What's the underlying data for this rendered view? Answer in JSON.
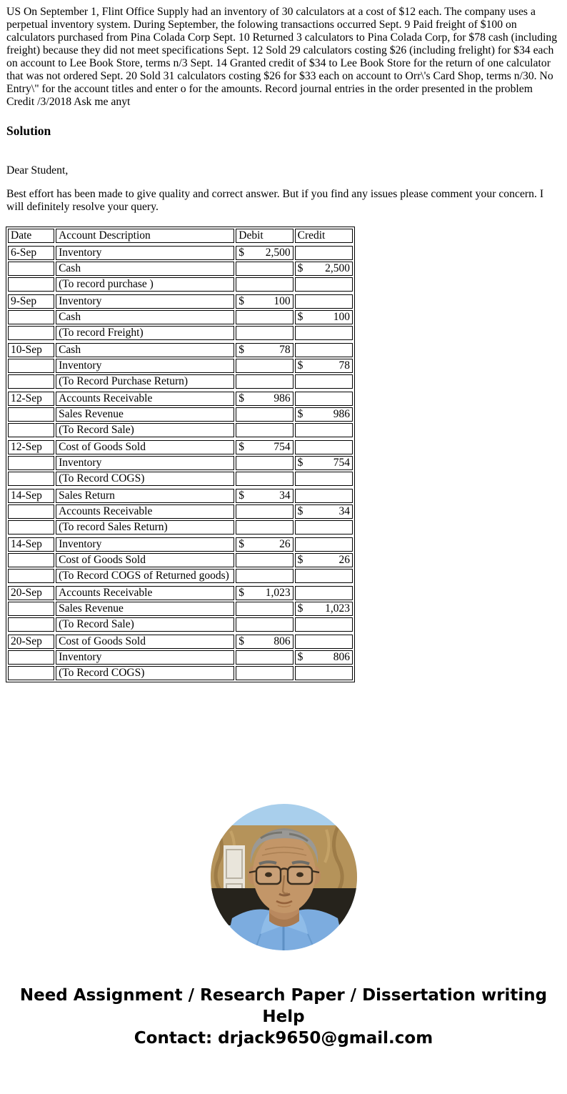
{
  "problem_text": "US On September 1, Flint Office Supply had an inventory of 30 calculators at a cost of $12 each. The company uses a perpetual inventory system. During September, the folowing transactions occurred Sept. 9 Paid freight of $100 on calculators purchased from Pina Colada Corp Sept. 10 Returned 3 calculators to Pina Colada Corp, for $78 cash (including freight) because they did not meet specifications Sept. 12 Sold 29 calculators costing $26 (including frelight) for $34 each on account to Lee Book Store, terms n/3 Sept. 14 Granted credit of $34 to Lee Book Store for the return of one calculator that was not ordered Sept. 20 Sold 31 calculators costing $26 for $33 each on account to Orr\\'s Card Shop, terms n/30. No Entry\\\" for the account titles and enter o for the amounts. Record journal entries in the order presented in the problem Credit /3/2018 Ask me anyt",
  "solution_heading": "Solution",
  "greeting": "Dear Student,",
  "message": "Best effort has been made to give quality and correct answer. But if you find any issues please comment your concern. I will definitely resolve your query.",
  "table": {
    "currency": "$",
    "headers": [
      "Date",
      "Account Description",
      "Debit",
      "Credit"
    ],
    "entries": [
      {
        "rows": [
          {
            "date": "6-Sep",
            "account": "Inventory",
            "debit": "2,500",
            "credit": ""
          },
          {
            "date": "",
            "account": "Cash",
            "debit": "",
            "credit": "2,500"
          },
          {
            "date": "",
            "account": "(To record purchase )",
            "debit": "",
            "credit": ""
          }
        ]
      },
      {
        "rows": [
          {
            "date": "9-Sep",
            "account": "Inventory",
            "debit": "100",
            "credit": ""
          },
          {
            "date": "",
            "account": "Cash",
            "debit": "",
            "credit": "100"
          },
          {
            "date": "",
            "account": "(To record Freight)",
            "debit": "",
            "credit": ""
          }
        ]
      },
      {
        "rows": [
          {
            "date": "10-Sep",
            "account": "Cash",
            "debit": "78",
            "credit": ""
          },
          {
            "date": "",
            "account": "Inventory",
            "debit": "",
            "credit": "78"
          },
          {
            "date": "",
            "account": "(To Record Purchase Return)",
            "debit": "",
            "credit": ""
          }
        ]
      },
      {
        "rows": [
          {
            "date": "12-Sep",
            "account": "Accounts Receivable",
            "debit": "986",
            "credit": ""
          },
          {
            "date": "",
            "account": "Sales Revenue",
            "debit": "",
            "credit": "986"
          },
          {
            "date": "",
            "account": "(To Record Sale)",
            "debit": "",
            "credit": ""
          }
        ]
      },
      {
        "rows": [
          {
            "date": "12-Sep",
            "account": "Cost of Goods Sold",
            "debit": "754",
            "credit": ""
          },
          {
            "date": "",
            "account": "Inventory",
            "debit": "",
            "credit": "754"
          },
          {
            "date": "",
            "account": "(To Record COGS)",
            "debit": "",
            "credit": ""
          }
        ]
      },
      {
        "rows": [
          {
            "date": "14-Sep",
            "account": "Sales Return",
            "debit": "34",
            "credit": ""
          },
          {
            "date": "",
            "account": "Accounts Receivable",
            "debit": "",
            "credit": "34"
          },
          {
            "date": "",
            "account": "(To record Sales Return)",
            "debit": "",
            "credit": ""
          }
        ]
      },
      {
        "rows": [
          {
            "date": "14-Sep",
            "account": "Inventory",
            "debit": "26",
            "credit": ""
          },
          {
            "date": "",
            "account": "Cost of Goods Sold",
            "debit": "",
            "credit": "26"
          },
          {
            "date": "",
            "account": "(To Record COGS of Returned goods)",
            "debit": "",
            "credit": ""
          }
        ]
      },
      {
        "rows": [
          {
            "date": "20-Sep",
            "account": "Accounts Receivable",
            "debit": "1,023",
            "credit": ""
          },
          {
            "date": "",
            "account": "Sales Revenue",
            "debit": "",
            "credit": "1,023"
          },
          {
            "date": "",
            "account": "(To Record Sale)",
            "debit": "",
            "credit": ""
          }
        ]
      },
      {
        "rows": [
          {
            "date": "20-Sep",
            "account": "Cost of Goods Sold",
            "debit": "806",
            "credit": ""
          },
          {
            "date": "",
            "account": "Inventory",
            "debit": "",
            "credit": "806"
          },
          {
            "date": "",
            "account": "(To Record COGS)",
            "debit": "",
            "credit": ""
          }
        ]
      }
    ]
  },
  "footer": {
    "line1": "Need Assignment / Research Paper / Dissertation writing Help",
    "line2": "Contact: drjack9650@gmail.com"
  },
  "colors": {
    "text": "#000000",
    "table_border": "#000000",
    "shirt_blue": "#7cacdf",
    "sky_blue": "#a9cfec",
    "panel_tan": "#b5935a",
    "skin": "#c39668"
  }
}
